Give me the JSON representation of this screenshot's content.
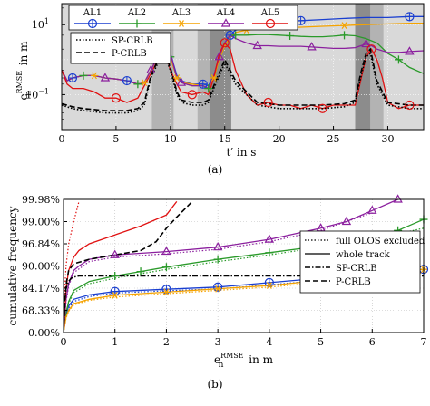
{
  "chart_data": [
    {
      "type": "line",
      "panel_label": "(a)",
      "xlabel": "t′ in s",
      "ylabel": "e_n^RMSE in m",
      "ylabel_main": "e",
      "ylabel_sub": "n",
      "ylabel_sup": "RMSE",
      "ylabel_unit": "in m",
      "y_scale": "log",
      "xlim": [
        0,
        33.3
      ],
      "ylim": [
        0.01,
        40
      ],
      "x_ticks": [
        0,
        5,
        10,
        15,
        20,
        25,
        30
      ],
      "y_ticks": [
        {
          "v": 0.1,
          "label": "10",
          "sup": "−1"
        },
        {
          "v": 10,
          "label": "10",
          "sup": "1"
        }
      ],
      "shaded_regions": [
        {
          "from": 0,
          "to": 33.3,
          "shade": "light"
        },
        {
          "from": 8.3,
          "to": 10.3,
          "shade": "medium"
        },
        {
          "from": 10.3,
          "to": 12.5,
          "shade": "light"
        },
        {
          "from": 12.5,
          "to": 13.6,
          "shade": "medium"
        },
        {
          "from": 13.6,
          "to": 15.6,
          "shade": "dark"
        },
        {
          "from": 27.0,
          "to": 28.4,
          "shade": "dark"
        },
        {
          "from": 28.4,
          "to": 29.6,
          "shade": "medium"
        }
      ],
      "legend_top": [
        "AL1",
        "AL2",
        "AL3",
        "AL4",
        "AL5"
      ],
      "legend_bottom": [
        "SP-CRLB",
        "P-CRLB"
      ],
      "series": [
        {
          "name": "AL1",
          "color": "#1a3fd0",
          "marker": "circle-plus",
          "x": [
            0,
            0.5,
            1,
            2,
            3,
            4,
            5,
            6,
            7,
            7.6,
            8.2,
            9,
            9.5,
            10,
            10.6,
            11,
            12,
            13,
            13.5,
            14,
            14.5,
            15,
            15.5,
            16,
            17,
            18,
            20,
            22,
            24,
            26,
            28,
            30,
            32,
            33.3
          ],
          "y": [
            0.5,
            0.25,
            0.3,
            0.35,
            0.35,
            0.3,
            0.28,
            0.25,
            0.2,
            0.22,
            0.5,
            1.5,
            2.2,
            1.5,
            0.35,
            0.25,
            0.2,
            0.2,
            0.18,
            0.35,
            1.2,
            3,
            5,
            7,
            9,
            11,
            12,
            13,
            14,
            15,
            16,
            16,
            17,
            17
          ]
        },
        {
          "name": "AL2",
          "color": "#2a9a2a",
          "marker": "plus",
          "x": [
            0,
            0.5,
            1,
            2,
            3,
            4,
            5,
            6,
            7,
            7.6,
            8.2,
            9,
            9.5,
            10,
            10.6,
            11,
            12,
            13,
            13.5,
            14,
            14.5,
            15,
            15.5,
            16,
            17,
            18,
            19,
            20,
            21,
            22,
            23,
            24,
            25,
            26,
            27,
            28,
            29,
            30,
            31,
            32,
            33.3
          ],
          "y": [
            0.5,
            0.25,
            0.3,
            0.35,
            0.35,
            0.3,
            0.28,
            0.25,
            0.2,
            0.22,
            0.5,
            1.5,
            2,
            1.2,
            0.3,
            0.22,
            0.18,
            0.18,
            0.15,
            0.3,
            1,
            2.5,
            4.5,
            5,
            5,
            5.2,
            5.2,
            5,
            4.8,
            4.6,
            4.5,
            4.5,
            4.7,
            5,
            4.8,
            4,
            3,
            1.5,
            1.0,
            0.6,
            0.4
          ]
        },
        {
          "name": "AL3",
          "color": "#f5a300",
          "marker": "star",
          "x": [
            0,
            0.5,
            1,
            2,
            3,
            4,
            5,
            6,
            7,
            7.6,
            8.2,
            9,
            9.5,
            10,
            10.6,
            11,
            12,
            13,
            13.5,
            14,
            14.5,
            15,
            15.5,
            16,
            17,
            18,
            20,
            22,
            24,
            26,
            28,
            30,
            32,
            33.3
          ],
          "y": [
            0.5,
            0.25,
            0.3,
            0.35,
            0.35,
            0.3,
            0.28,
            0.25,
            0.2,
            0.22,
            0.5,
            1.5,
            2,
            1.2,
            0.3,
            0.22,
            0.2,
            0.18,
            0.15,
            0.3,
            1,
            2.5,
            4.5,
            6,
            7,
            7.5,
            8,
            8.5,
            9,
            9.5,
            10,
            10.5,
            11,
            11
          ]
        },
        {
          "name": "AL4",
          "color": "#8b1f9e",
          "marker": "triangle",
          "x": [
            0,
            0.5,
            1,
            2,
            3,
            4,
            5,
            6,
            7,
            7.6,
            8.2,
            9,
            9.5,
            10,
            10.6,
            11,
            12,
            13,
            13.5,
            14,
            14.5,
            15,
            15.5,
            16,
            17,
            18,
            19,
            20,
            21,
            22,
            23,
            24,
            25,
            26,
            27,
            28,
            28.5,
            29,
            30,
            31,
            32,
            33.3
          ],
          "y": [
            0.5,
            0.25,
            0.3,
            0.35,
            0.35,
            0.3,
            0.28,
            0.25,
            0.2,
            0.22,
            0.5,
            1.5,
            2.5,
            1.5,
            0.3,
            0.22,
            0.18,
            0.18,
            0.15,
            0.35,
            1.2,
            3,
            5,
            4,
            3,
            2.5,
            2.5,
            2.4,
            2.4,
            2.4,
            2.3,
            2.2,
            2.1,
            2.1,
            2.2,
            2.8,
            2.5,
            2,
            1.6,
            1.6,
            1.7,
            1.8
          ]
        },
        {
          "name": "AL5",
          "color": "#e01010",
          "marker": "circle",
          "x": [
            0,
            0.5,
            1,
            2,
            3,
            4,
            5,
            6,
            7,
            7.6,
            8.2,
            9,
            9.5,
            10,
            10.6,
            11,
            12,
            13,
            13.5,
            14,
            14.5,
            15,
            15.5,
            16,
            17,
            18,
            19,
            20,
            21,
            22,
            23,
            24,
            25,
            26,
            27,
            28,
            28.5,
            29,
            29.5,
            30,
            31,
            32,
            33.3
          ],
          "y": [
            0.5,
            0.2,
            0.15,
            0.15,
            0.12,
            0.08,
            0.08,
            0.06,
            0.08,
            0.18,
            0.4,
            1.2,
            1.8,
            0.5,
            0.2,
            0.12,
            0.1,
            0.12,
            0.1,
            0.3,
            1.5,
            3,
            2,
            0.5,
            0.1,
            0.05,
            0.06,
            0.05,
            0.05,
            0.04,
            0.05,
            0.04,
            0.05,
            0.05,
            0.05,
            1.2,
            2,
            1,
            0.3,
            0.06,
            0.04,
            0.05,
            0.05
          ]
        },
        {
          "name": "SP-CRLB",
          "color": "#000000",
          "dash": "1.5,2",
          "x": [
            0,
            1,
            2,
            4,
            6,
            7,
            7.6,
            8.2,
            9,
            9.5,
            10,
            10.6,
            11,
            12,
            13,
            13.5,
            14,
            15,
            16,
            18,
            20,
            22,
            24,
            26,
            27,
            27.5,
            28,
            28.4,
            29,
            30,
            32,
            33.3
          ],
          "y": [
            0.05,
            0.04,
            0.035,
            0.03,
            0.03,
            0.035,
            0.05,
            0.3,
            1.0,
            1.2,
            0.5,
            0.1,
            0.06,
            0.05,
            0.05,
            0.06,
            0.15,
            0.8,
            0.2,
            0.05,
            0.04,
            0.04,
            0.04,
            0.045,
            0.06,
            0.3,
            1.2,
            1.5,
            0.2,
            0.05,
            0.04,
            0.04
          ]
        },
        {
          "name": "P-CRLB",
          "color": "#000000",
          "dash": "6,3",
          "x": [
            0,
            1,
            2,
            4,
            6,
            7,
            7.6,
            8.2,
            9,
            9.5,
            10,
            10.6,
            11,
            12,
            13,
            13.5,
            14,
            15,
            16,
            18,
            20,
            22,
            24,
            26,
            27,
            27.5,
            28,
            28.4,
            29,
            30,
            32,
            33.3
          ],
          "y": [
            0.055,
            0.045,
            0.04,
            0.035,
            0.035,
            0.04,
            0.06,
            0.35,
            1.2,
            1.4,
            0.6,
            0.12,
            0.07,
            0.06,
            0.06,
            0.07,
            0.18,
            1.0,
            0.25,
            0.06,
            0.05,
            0.05,
            0.05,
            0.055,
            0.07,
            0.4,
            1.5,
            2.0,
            0.25,
            0.06,
            0.05,
            0.05
          ]
        }
      ]
    },
    {
      "type": "line",
      "panel_label": "(b)",
      "xlabel": "e_n^RMSE in m",
      "xlabel_main": "e",
      "xlabel_sub": "n",
      "xlabel_sup": "RMSE",
      "xlabel_unit": "in m",
      "ylabel": "cumulative frequency",
      "xlim": [
        0,
        7
      ],
      "x_ticks": [
        0,
        1,
        2,
        3,
        4,
        5,
        6,
        7
      ],
      "y_ticks": [
        "0.00%",
        "68.33%",
        "84.17%",
        "90.00%",
        "96.84%",
        "99.00%",
        "99.98%"
      ],
      "legend": [
        "full OLOS excluded",
        "whole track",
        "SP-CRLB",
        "P-CRLB"
      ],
      "series": [
        {
          "name": "AL1",
          "color": "#1a3fd0",
          "marker": "circle-plus",
          "x": [
            0,
            0.05,
            0.1,
            0.2,
            0.5,
            1,
            2,
            3,
            4,
            5,
            6,
            7
          ],
          "y": [
            0,
            0.8,
            1.2,
            1.5,
            1.7,
            1.85,
            1.95,
            2.05,
            2.25,
            2.45,
            2.65,
            2.85
          ],
          "dotted_x": [
            0,
            0.05,
            0.1,
            0.2,
            0.5,
            1,
            2,
            3,
            4,
            5,
            6,
            7
          ],
          "dotted_y": [
            0,
            0.75,
            1.1,
            1.4,
            1.62,
            1.78,
            1.88,
            1.97,
            2.15,
            2.35,
            2.55,
            2.72
          ]
        },
        {
          "name": "AL2",
          "color": "#2a9a2a",
          "marker": "plus",
          "x": [
            0,
            0.05,
            0.1,
            0.2,
            0.5,
            1,
            1.5,
            2,
            3,
            4,
            5,
            6,
            6.5,
            7
          ],
          "y": [
            0,
            0.9,
            1.4,
            1.9,
            2.3,
            2.55,
            2.75,
            2.95,
            3.3,
            3.6,
            3.9,
            4.3,
            4.6,
            5.1
          ],
          "dotted_x": [
            0,
            0.05,
            0.1,
            0.2,
            0.5,
            1,
            2,
            3,
            4,
            5,
            6,
            7
          ],
          "dotted_y": [
            0,
            0.85,
            1.3,
            1.8,
            2.2,
            2.45,
            2.85,
            3.2,
            3.5,
            3.85,
            4.2,
            4.7
          ]
        },
        {
          "name": "AL3",
          "color": "#f5a300",
          "marker": "star",
          "x": [
            0,
            0.05,
            0.1,
            0.2,
            0.5,
            1,
            2,
            3,
            4,
            5,
            6,
            7
          ],
          "y": [
            0,
            0.7,
            1.0,
            1.3,
            1.5,
            1.68,
            1.82,
            1.97,
            2.12,
            2.35,
            2.6,
            2.85
          ],
          "dotted_x": [
            0,
            0.05,
            0.1,
            0.2,
            0.5,
            1,
            2,
            3,
            4,
            5,
            6,
            7
          ],
          "dotted_y": [
            0,
            0.65,
            0.95,
            1.25,
            1.45,
            1.6,
            1.75,
            1.9,
            2.05,
            2.25,
            2.5,
            2.7
          ]
        },
        {
          "name": "AL4",
          "color": "#8b1f9e",
          "marker": "triangle",
          "x": [
            0,
            0.05,
            0.1,
            0.2,
            0.3,
            0.5,
            1,
            2,
            3,
            4,
            5,
            5.5,
            6,
            6.5
          ],
          "y": [
            0,
            1.5,
            2.2,
            2.8,
            3.0,
            3.3,
            3.5,
            3.65,
            3.85,
            4.2,
            4.7,
            5.0,
            5.5,
            6.0
          ],
          "dotted_x": [
            0,
            0.05,
            0.1,
            0.2,
            0.5,
            1,
            2,
            3,
            4,
            5,
            6
          ],
          "dotted_y": [
            0,
            1.4,
            2.1,
            2.7,
            3.2,
            3.4,
            3.55,
            3.75,
            4.1,
            4.6,
            5.4
          ]
        },
        {
          "name": "AL5",
          "color": "#e01010",
          "x": [
            0,
            0.05,
            0.1,
            0.2,
            0.3,
            0.5,
            1,
            1.5,
            2,
            2.2
          ],
          "y": [
            0,
            2.0,
            2.8,
            3.4,
            3.7,
            4.0,
            4.4,
            4.8,
            5.3,
            5.9
          ],
          "dotted_x": [
            0,
            0.02,
            0.05,
            0.1,
            0.2,
            0.3
          ],
          "dotted_y": [
            0,
            1.8,
            3.0,
            4.0,
            5.0,
            5.9
          ]
        },
        {
          "name": "SP-CRLB",
          "color": "#000000",
          "dash": "6,2,1.5,2",
          "x": [
            0,
            0.02,
            0.05,
            0.1,
            0.15,
            0.2,
            0.3,
            1,
            2,
            3,
            4,
            5,
            6,
            7
          ],
          "y": [
            0,
            1.4,
            2.0,
            2.3,
            2.45,
            2.5,
            2.55,
            2.55,
            2.55,
            2.55,
            2.55,
            2.55,
            2.55,
            2.55
          ]
        },
        {
          "name": "P-CRLB",
          "color": "#000000",
          "dash": "6,3",
          "x": [
            0,
            0.03,
            0.06,
            0.1,
            0.2,
            0.5,
            1,
            1.5,
            1.8,
            2,
            2.2,
            2.5
          ],
          "y": [
            0,
            1.5,
            2.3,
            2.8,
            3.1,
            3.3,
            3.5,
            3.7,
            4.1,
            4.7,
            5.2,
            5.9
          ]
        }
      ]
    }
  ]
}
